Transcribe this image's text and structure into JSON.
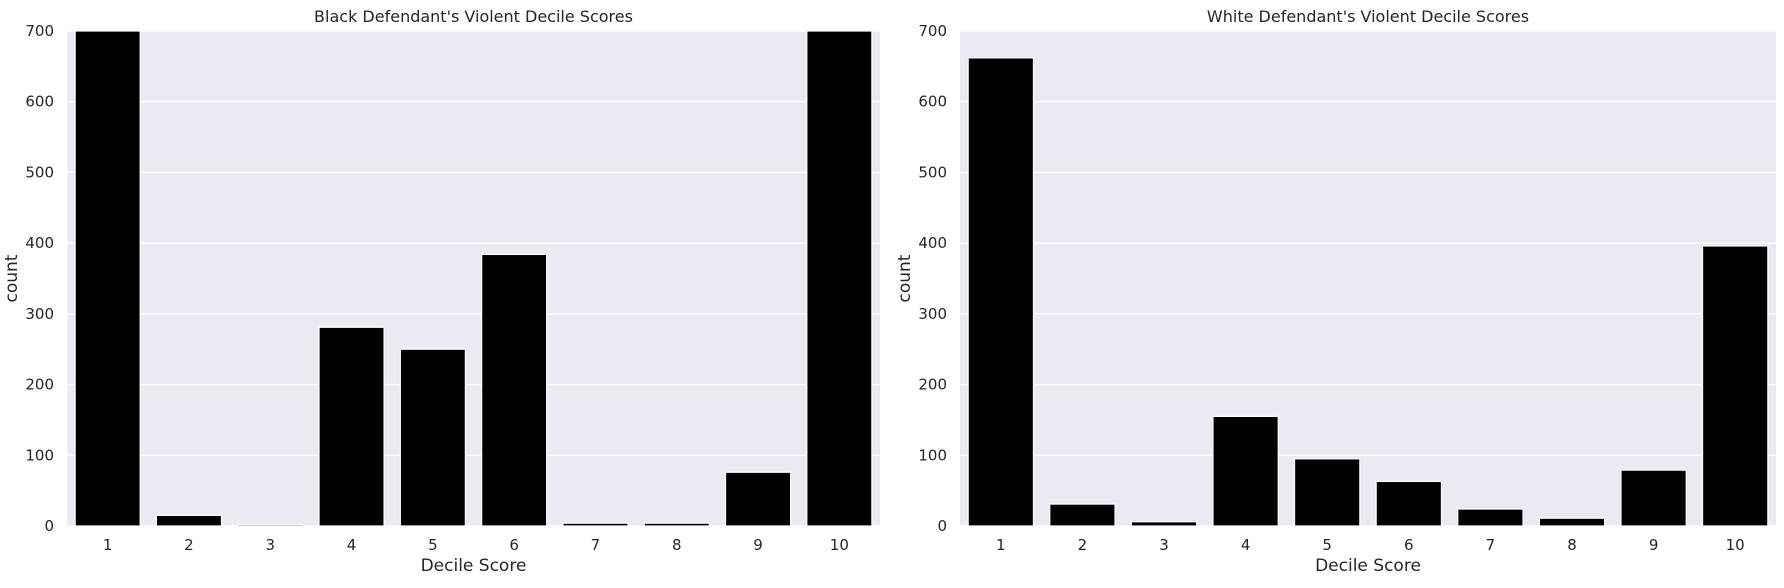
{
  "chart_data": [
    {
      "type": "bar",
      "title": "Black Defendant's Violent Decile Scores",
      "xlabel": "Decile Score",
      "ylabel": "count",
      "categories": [
        "1",
        "2",
        "3",
        "4",
        "5",
        "6",
        "7",
        "8",
        "9",
        "10"
      ],
      "values": [
        700,
        15,
        2,
        281,
        250,
        384,
        4,
        4,
        76,
        700
      ],
      "ylim": [
        0,
        700
      ],
      "yticks": [
        0,
        100,
        200,
        300,
        400,
        500,
        600,
        700
      ],
      "ytick_labels": [
        "0",
        "100",
        "200",
        "300",
        "400",
        "500",
        "600",
        "700"
      ],
      "grid": true,
      "bar_color": "#000000",
      "background_color": "#eaeaf2"
    },
    {
      "type": "bar",
      "title": "White Defendant's Violent Decile Scores",
      "xlabel": "Decile Score",
      "ylabel": "count",
      "categories": [
        "1",
        "2",
        "3",
        "4",
        "5",
        "6",
        "7",
        "8",
        "9",
        "10"
      ],
      "values": [
        662,
        31,
        6,
        155,
        95,
        63,
        24,
        11,
        79,
        396
      ],
      "ylim": [
        0,
        700
      ],
      "yticks": [
        0,
        100,
        200,
        300,
        400,
        500,
        600,
        700
      ],
      "ytick_labels": [
        "0",
        "100",
        "200",
        "300",
        "400",
        "500",
        "600",
        "700"
      ],
      "grid": true,
      "bar_color": "#000000",
      "background_color": "#eaeaf2"
    }
  ]
}
